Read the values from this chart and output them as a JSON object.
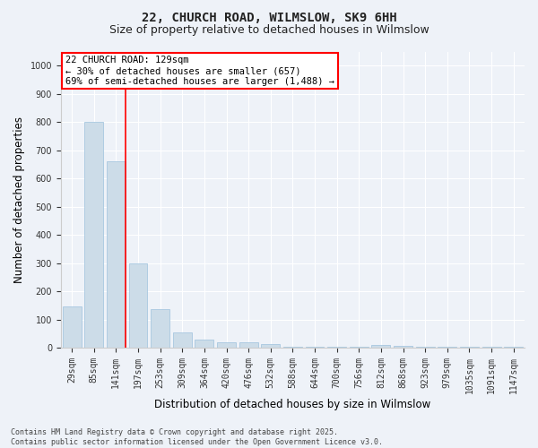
{
  "title": "22, CHURCH ROAD, WILMSLOW, SK9 6HH",
  "subtitle": "Size of property relative to detached houses in Wilmslow",
  "xlabel": "Distribution of detached houses by size in Wilmslow",
  "ylabel": "Number of detached properties",
  "bar_color": "#ccdce8",
  "bar_edge_color": "#a8c8e0",
  "background_color": "#eef2f8",
  "grid_color": "#ffffff",
  "categories": [
    "29sqm",
    "85sqm",
    "141sqm",
    "197sqm",
    "253sqm",
    "309sqm",
    "364sqm",
    "420sqm",
    "476sqm",
    "532sqm",
    "588sqm",
    "644sqm",
    "700sqm",
    "756sqm",
    "812sqm",
    "868sqm",
    "923sqm",
    "979sqm",
    "1035sqm",
    "1091sqm",
    "1147sqm"
  ],
  "values": [
    145,
    800,
    660,
    300,
    137,
    55,
    28,
    18,
    18,
    13,
    2,
    2,
    2,
    2,
    9,
    6,
    2,
    2,
    4,
    2,
    2
  ],
  "ylim": [
    0,
    1050
  ],
  "yticks": [
    0,
    100,
    200,
    300,
    400,
    500,
    600,
    700,
    800,
    900,
    1000
  ],
  "property_name": "22 CHURCH ROAD: 129sqm",
  "annotation_line1": "← 30% of detached houses are smaller (657)",
  "annotation_line2": "69% of semi-detached houses are larger (1,488) →",
  "vline_bar_index": 2,
  "footer_line1": "Contains HM Land Registry data © Crown copyright and database right 2025.",
  "footer_line2": "Contains public sector information licensed under the Open Government Licence v3.0.",
  "title_fontsize": 10,
  "subtitle_fontsize": 9,
  "axis_label_fontsize": 8.5,
  "tick_fontsize": 7,
  "annotation_fontsize": 7.5,
  "footer_fontsize": 6
}
